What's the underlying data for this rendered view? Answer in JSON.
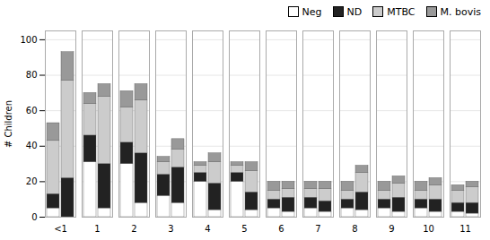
{
  "chart_data": {
    "type": "bar",
    "stacked": true,
    "ylabel": "# Children",
    "categories": [
      "<1",
      "1",
      "2",
      "3",
      "4",
      "5",
      "6",
      "7",
      "8",
      "9",
      "10",
      "11"
    ],
    "series": [
      {
        "name": "Neg",
        "color": "#ffffff",
        "values": [
          [
            5,
            0
          ],
          [
            31,
            5
          ],
          [
            30,
            8
          ],
          [
            12,
            8
          ],
          [
            20,
            4
          ],
          [
            20,
            4
          ],
          [
            5,
            3
          ],
          [
            5,
            3
          ],
          [
            5,
            4
          ],
          [
            5,
            3
          ],
          [
            5,
            3
          ],
          [
            3,
            2
          ]
        ]
      },
      {
        "name": "ND",
        "color": "#222222",
        "values": [
          [
            8,
            22
          ],
          [
            15,
            25
          ],
          [
            12,
            28
          ],
          [
            12,
            20
          ],
          [
            5,
            15
          ],
          [
            5,
            10
          ],
          [
            5,
            8
          ],
          [
            6,
            6
          ],
          [
            5,
            10
          ],
          [
            5,
            8
          ],
          [
            5,
            7
          ],
          [
            5,
            6
          ]
        ]
      },
      {
        "name": "MTBC",
        "color": "#cccccc",
        "values": [
          [
            30,
            55
          ],
          [
            18,
            38
          ],
          [
            20,
            30
          ],
          [
            7,
            10
          ],
          [
            4,
            12
          ],
          [
            4,
            12
          ],
          [
            5,
            5
          ],
          [
            5,
            7
          ],
          [
            5,
            11
          ],
          [
            5,
            8
          ],
          [
            5,
            8
          ],
          [
            7,
            9
          ]
        ]
      },
      {
        "name": "M. bovis",
        "color": "#999999",
        "values": [
          [
            10,
            16
          ],
          [
            6,
            7
          ],
          [
            9,
            9
          ],
          [
            3,
            6
          ],
          [
            2,
            5
          ],
          [
            2,
            5
          ],
          [
            5,
            4
          ],
          [
            4,
            4
          ],
          [
            5,
            4
          ],
          [
            5,
            4
          ],
          [
            5,
            4
          ],
          [
            3,
            3
          ]
        ]
      }
    ],
    "ylim": [
      0,
      105
    ],
    "yticks": [
      0,
      20,
      40,
      60,
      80,
      100
    ],
    "grid": true,
    "legend": "upper right"
  }
}
